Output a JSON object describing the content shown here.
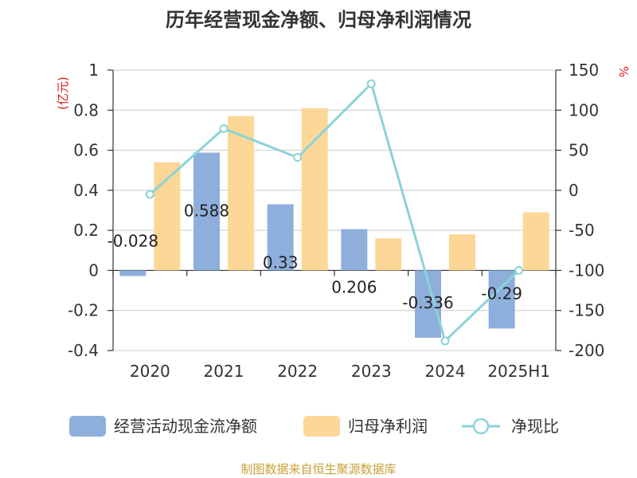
{
  "chart_data": {
    "type": "bar",
    "title": "历年经营现金净额、归母净利润情况",
    "categories": [
      "2020",
      "2021",
      "2022",
      "2023",
      "2024",
      "2025H1"
    ],
    "y_left_unit": "(亿元)",
    "y_right_unit": "%",
    "ylim_left": [
      -0.4,
      1
    ],
    "ylim_right": [
      -200,
      150
    ],
    "y_left_ticks": [
      "1",
      "0.8",
      "0.6",
      "0.4",
      "0.2",
      "0",
      "-0.2",
      "-0.4"
    ],
    "y_right_ticks": [
      "150",
      "100",
      "50",
      "0",
      "-50",
      "-100",
      "-150",
      "-200"
    ],
    "grid": true,
    "legend_position": "bottom",
    "series": [
      {
        "name": "经营活动现金流净额",
        "type": "bar",
        "axis": "left",
        "color": "#8eaedc",
        "values": [
          -0.028,
          0.588,
          0.33,
          0.206,
          -0.336,
          -0.29
        ],
        "labels": [
          "-0.028",
          "0.588",
          "0.33",
          "0.206",
          "-0.336",
          "-0.29"
        ]
      },
      {
        "name": "归母净利润",
        "type": "bar",
        "axis": "left",
        "color": "#fdd797",
        "values": [
          0.54,
          0.77,
          0.81,
          0.16,
          0.18,
          0.29
        ]
      },
      {
        "name": "净现比",
        "type": "line",
        "axis": "right",
        "color": "#8bd3d8",
        "values": [
          -5,
          77,
          41,
          133,
          -188,
          -100
        ]
      }
    ],
    "source": "制图数据来自恒生聚源数据库"
  }
}
